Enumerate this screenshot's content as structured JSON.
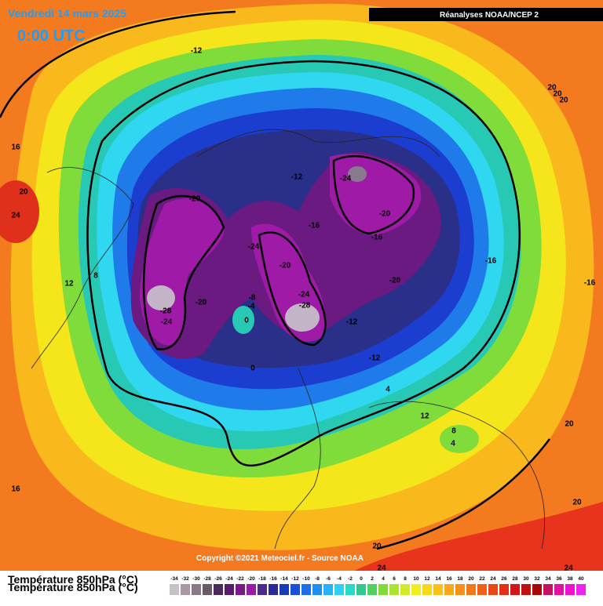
{
  "header": {
    "date": "Vendredi 14 mars 2025",
    "time": "0:00 UTC",
    "source_box": "Réanalyses NOAA/NCEP 2"
  },
  "copyright": "Copyright ©2021 Meteociel.fr - Source NOAA",
  "legend": {
    "title": "Température 850hPa (°C)",
    "labels": [
      -34,
      -32,
      -30,
      -28,
      -26,
      -24,
      -22,
      -20,
      -18,
      -16,
      -14,
      -12,
      -10,
      -8,
      -6,
      -4,
      -2,
      0,
      2,
      4,
      6,
      8,
      10,
      12,
      14,
      16,
      18,
      20,
      22,
      24,
      26,
      28,
      30,
      32,
      34,
      36,
      38,
      40
    ]
  },
  "contour_labels": [
    "-12",
    "16",
    "20",
    "24",
    "-20",
    "-12",
    "-24",
    "-16",
    "-20",
    "-16",
    "-24",
    "-20",
    "-16",
    "-20",
    "-24",
    "-28",
    "-8",
    "-4",
    "0",
    "-28",
    "-24",
    "-20",
    "-12",
    "-12",
    "0",
    "4",
    "12",
    "8",
    "4",
    "20",
    "20",
    "16",
    "20",
    "24",
    "24",
    "12",
    "8",
    "-16",
    "20",
    "20",
    "20"
  ]
}
